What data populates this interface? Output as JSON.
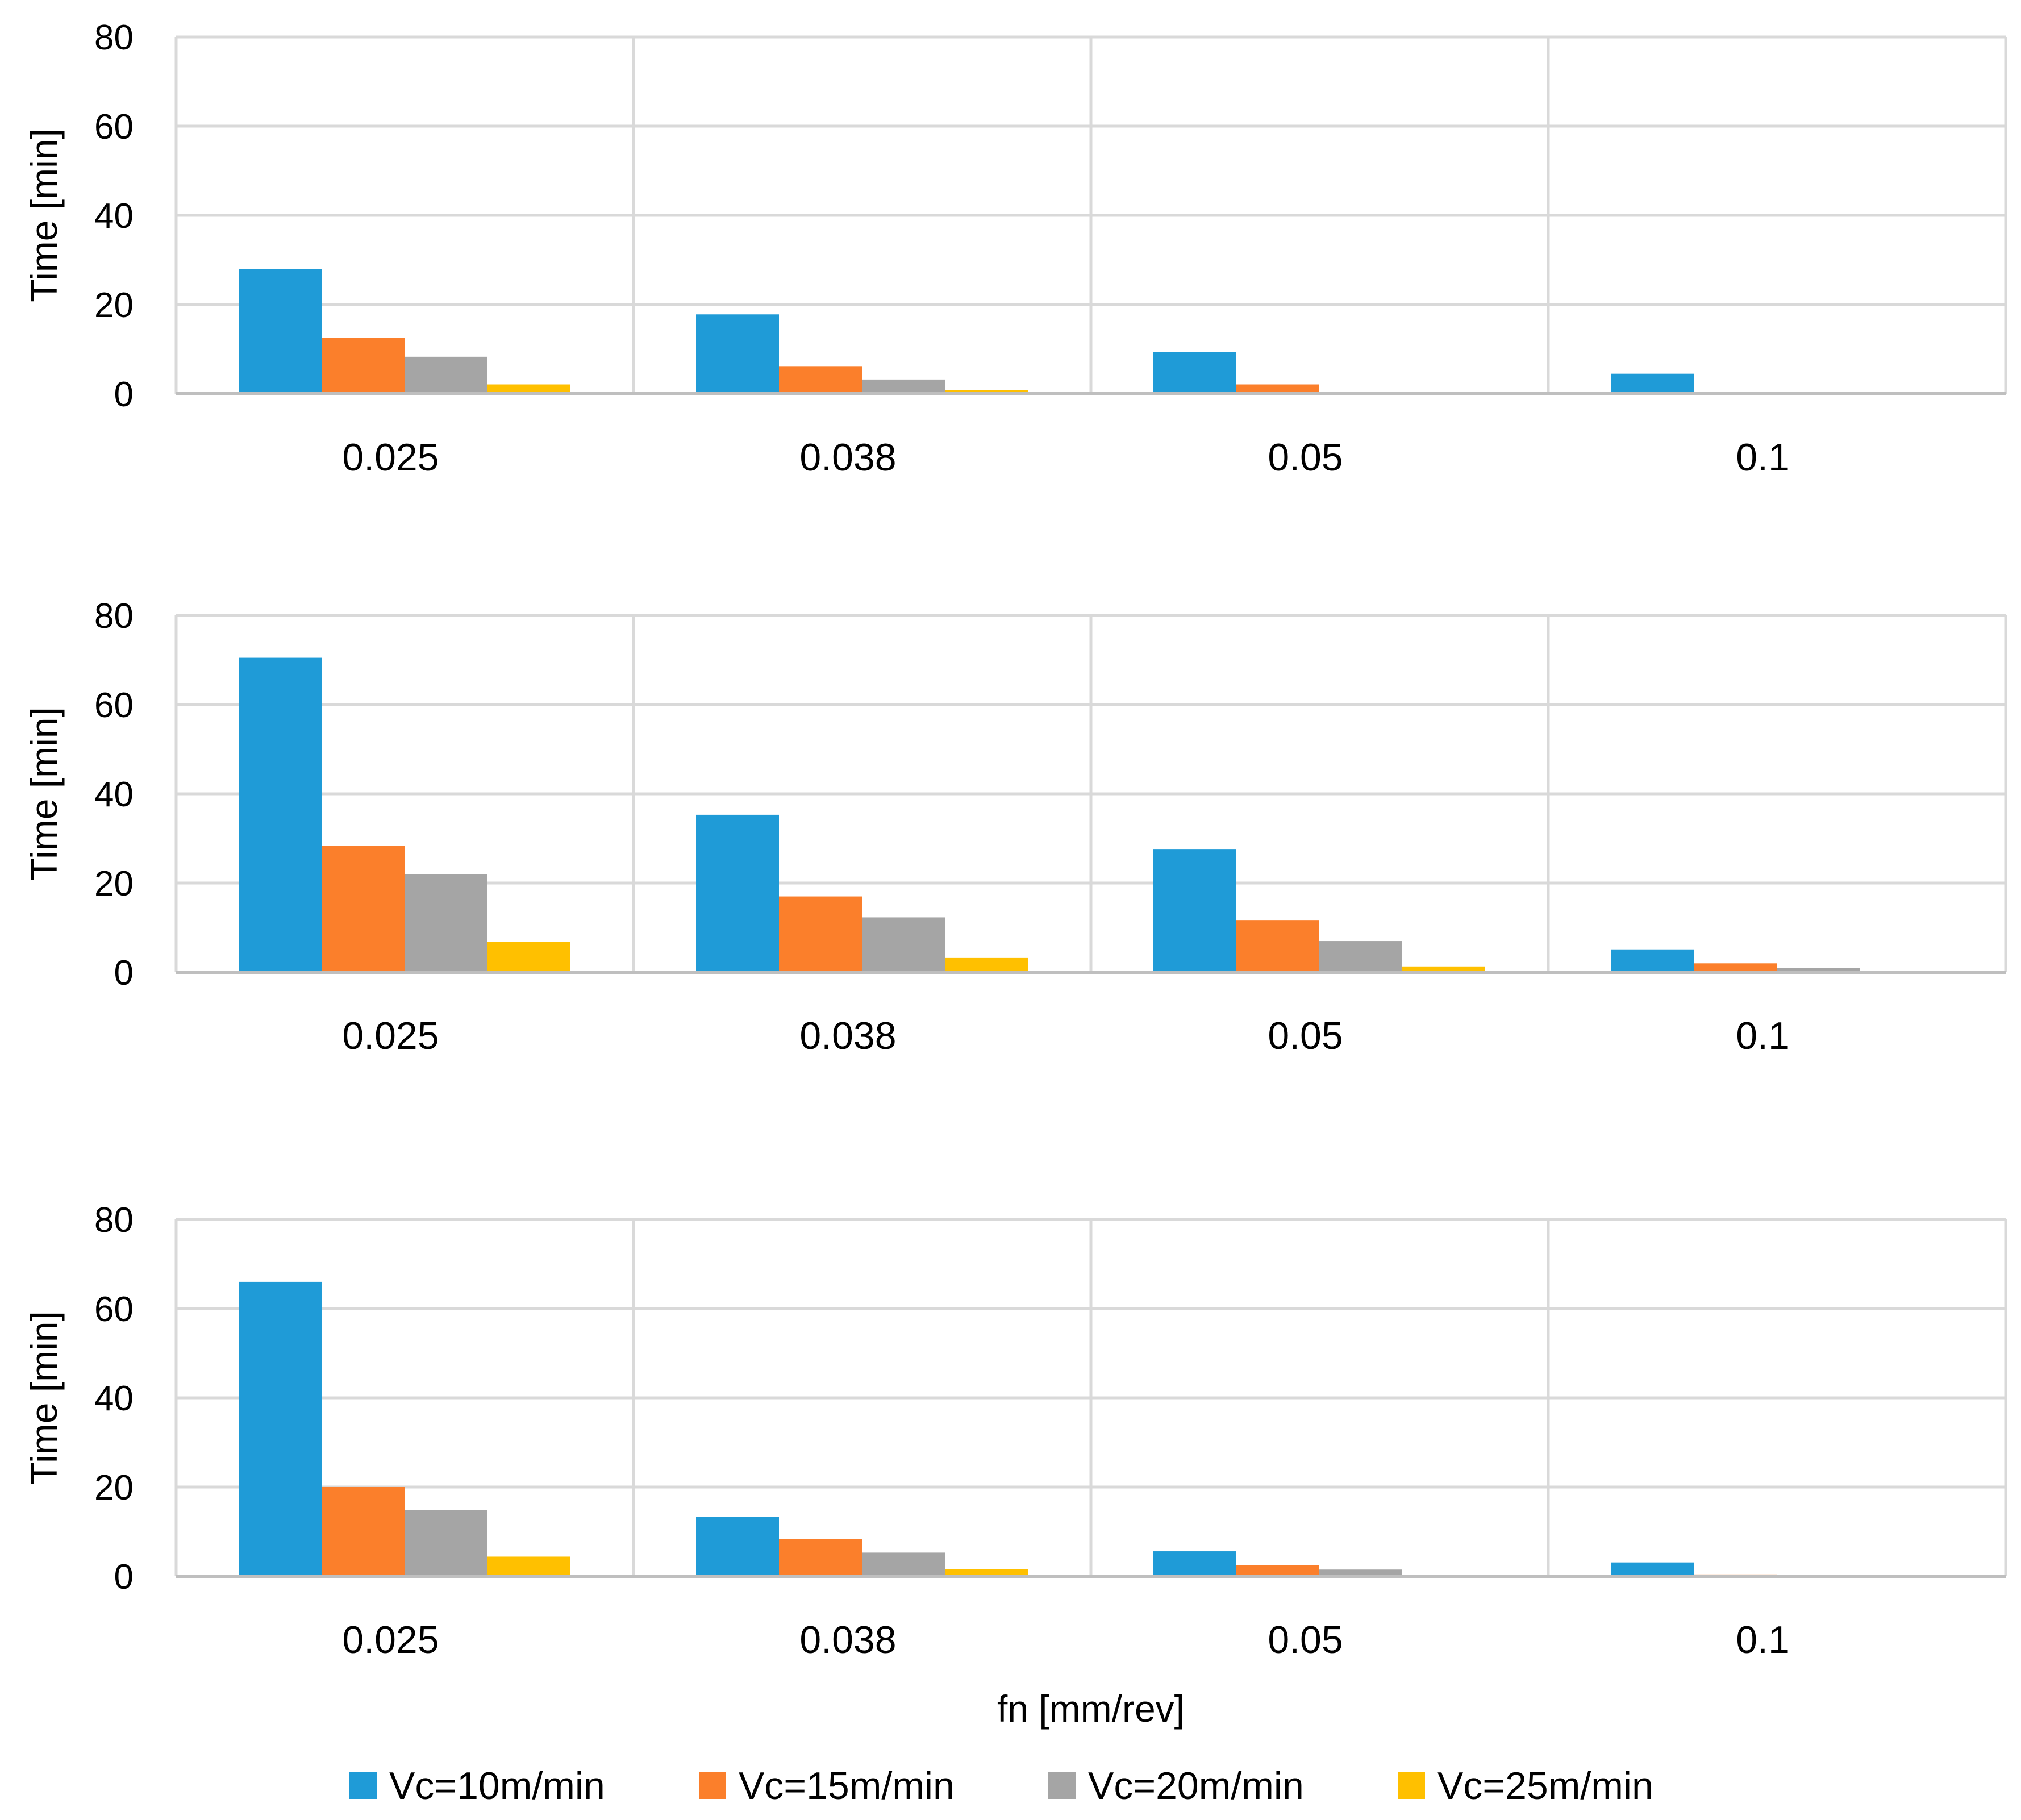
{
  "chart_data": {
    "type": "bar",
    "categories": [
      "0.025",
      "0.038",
      "0.05",
      "0.1"
    ],
    "series_names": [
      "Vc=10m/min",
      "Vc=15m/min",
      "Vc=20m/min",
      "Vc=25m/min"
    ],
    "colors": [
      "#1f9bd7",
      "#fb7f2b",
      "#a5a5a5",
      "#ffc000"
    ],
    "xlabel": "fn [mm/rev]",
    "ylim": [
      0,
      80
    ],
    "yticks": [
      0,
      20,
      40,
      60,
      80
    ],
    "grid": true,
    "legend": "bottom",
    "panels": [
      {
        "ylabel": "Time [min]",
        "series": [
          {
            "name": "Vc=10m/min",
            "values": [
              28,
              17.8,
              9.4,
              4.5
            ]
          },
          {
            "name": "Vc=15m/min",
            "values": [
              12.5,
              6.2,
              2.1,
              0.4
            ]
          },
          {
            "name": "Vc=20m/min",
            "values": [
              8.3,
              3.2,
              0.5,
              0.1
            ]
          },
          {
            "name": "Vc=25m/min",
            "values": [
              2.1,
              0.8,
              0.1,
              0.0
            ]
          }
        ]
      },
      {
        "ylabel": "Time [min]",
        "series": [
          {
            "name": "Vc=10m/min",
            "values": [
              70.5,
              35.3,
              27.5,
              5.0
            ]
          },
          {
            "name": "Vc=15m/min",
            "values": [
              28.3,
              17.0,
              11.7,
              2.0
            ]
          },
          {
            "name": "Vc=20m/min",
            "values": [
              22.0,
              12.3,
              7.0,
              1.0
            ]
          },
          {
            "name": "Vc=25m/min",
            "values": [
              6.8,
              3.2,
              1.3,
              0.1
            ]
          }
        ]
      },
      {
        "ylabel": "Time [min]",
        "series": [
          {
            "name": "Vc=10m/min",
            "values": [
              66.0,
              13.3,
              5.6,
              3.1
            ]
          },
          {
            "name": "Vc=15m/min",
            "values": [
              20.0,
              8.3,
              2.5,
              0.4
            ]
          },
          {
            "name": "Vc=20m/min",
            "values": [
              14.9,
              5.3,
              1.5,
              0.1
            ]
          },
          {
            "name": "Vc=25m/min",
            "values": [
              4.4,
              1.6,
              0.1,
              0.0
            ]
          }
        ]
      }
    ]
  }
}
